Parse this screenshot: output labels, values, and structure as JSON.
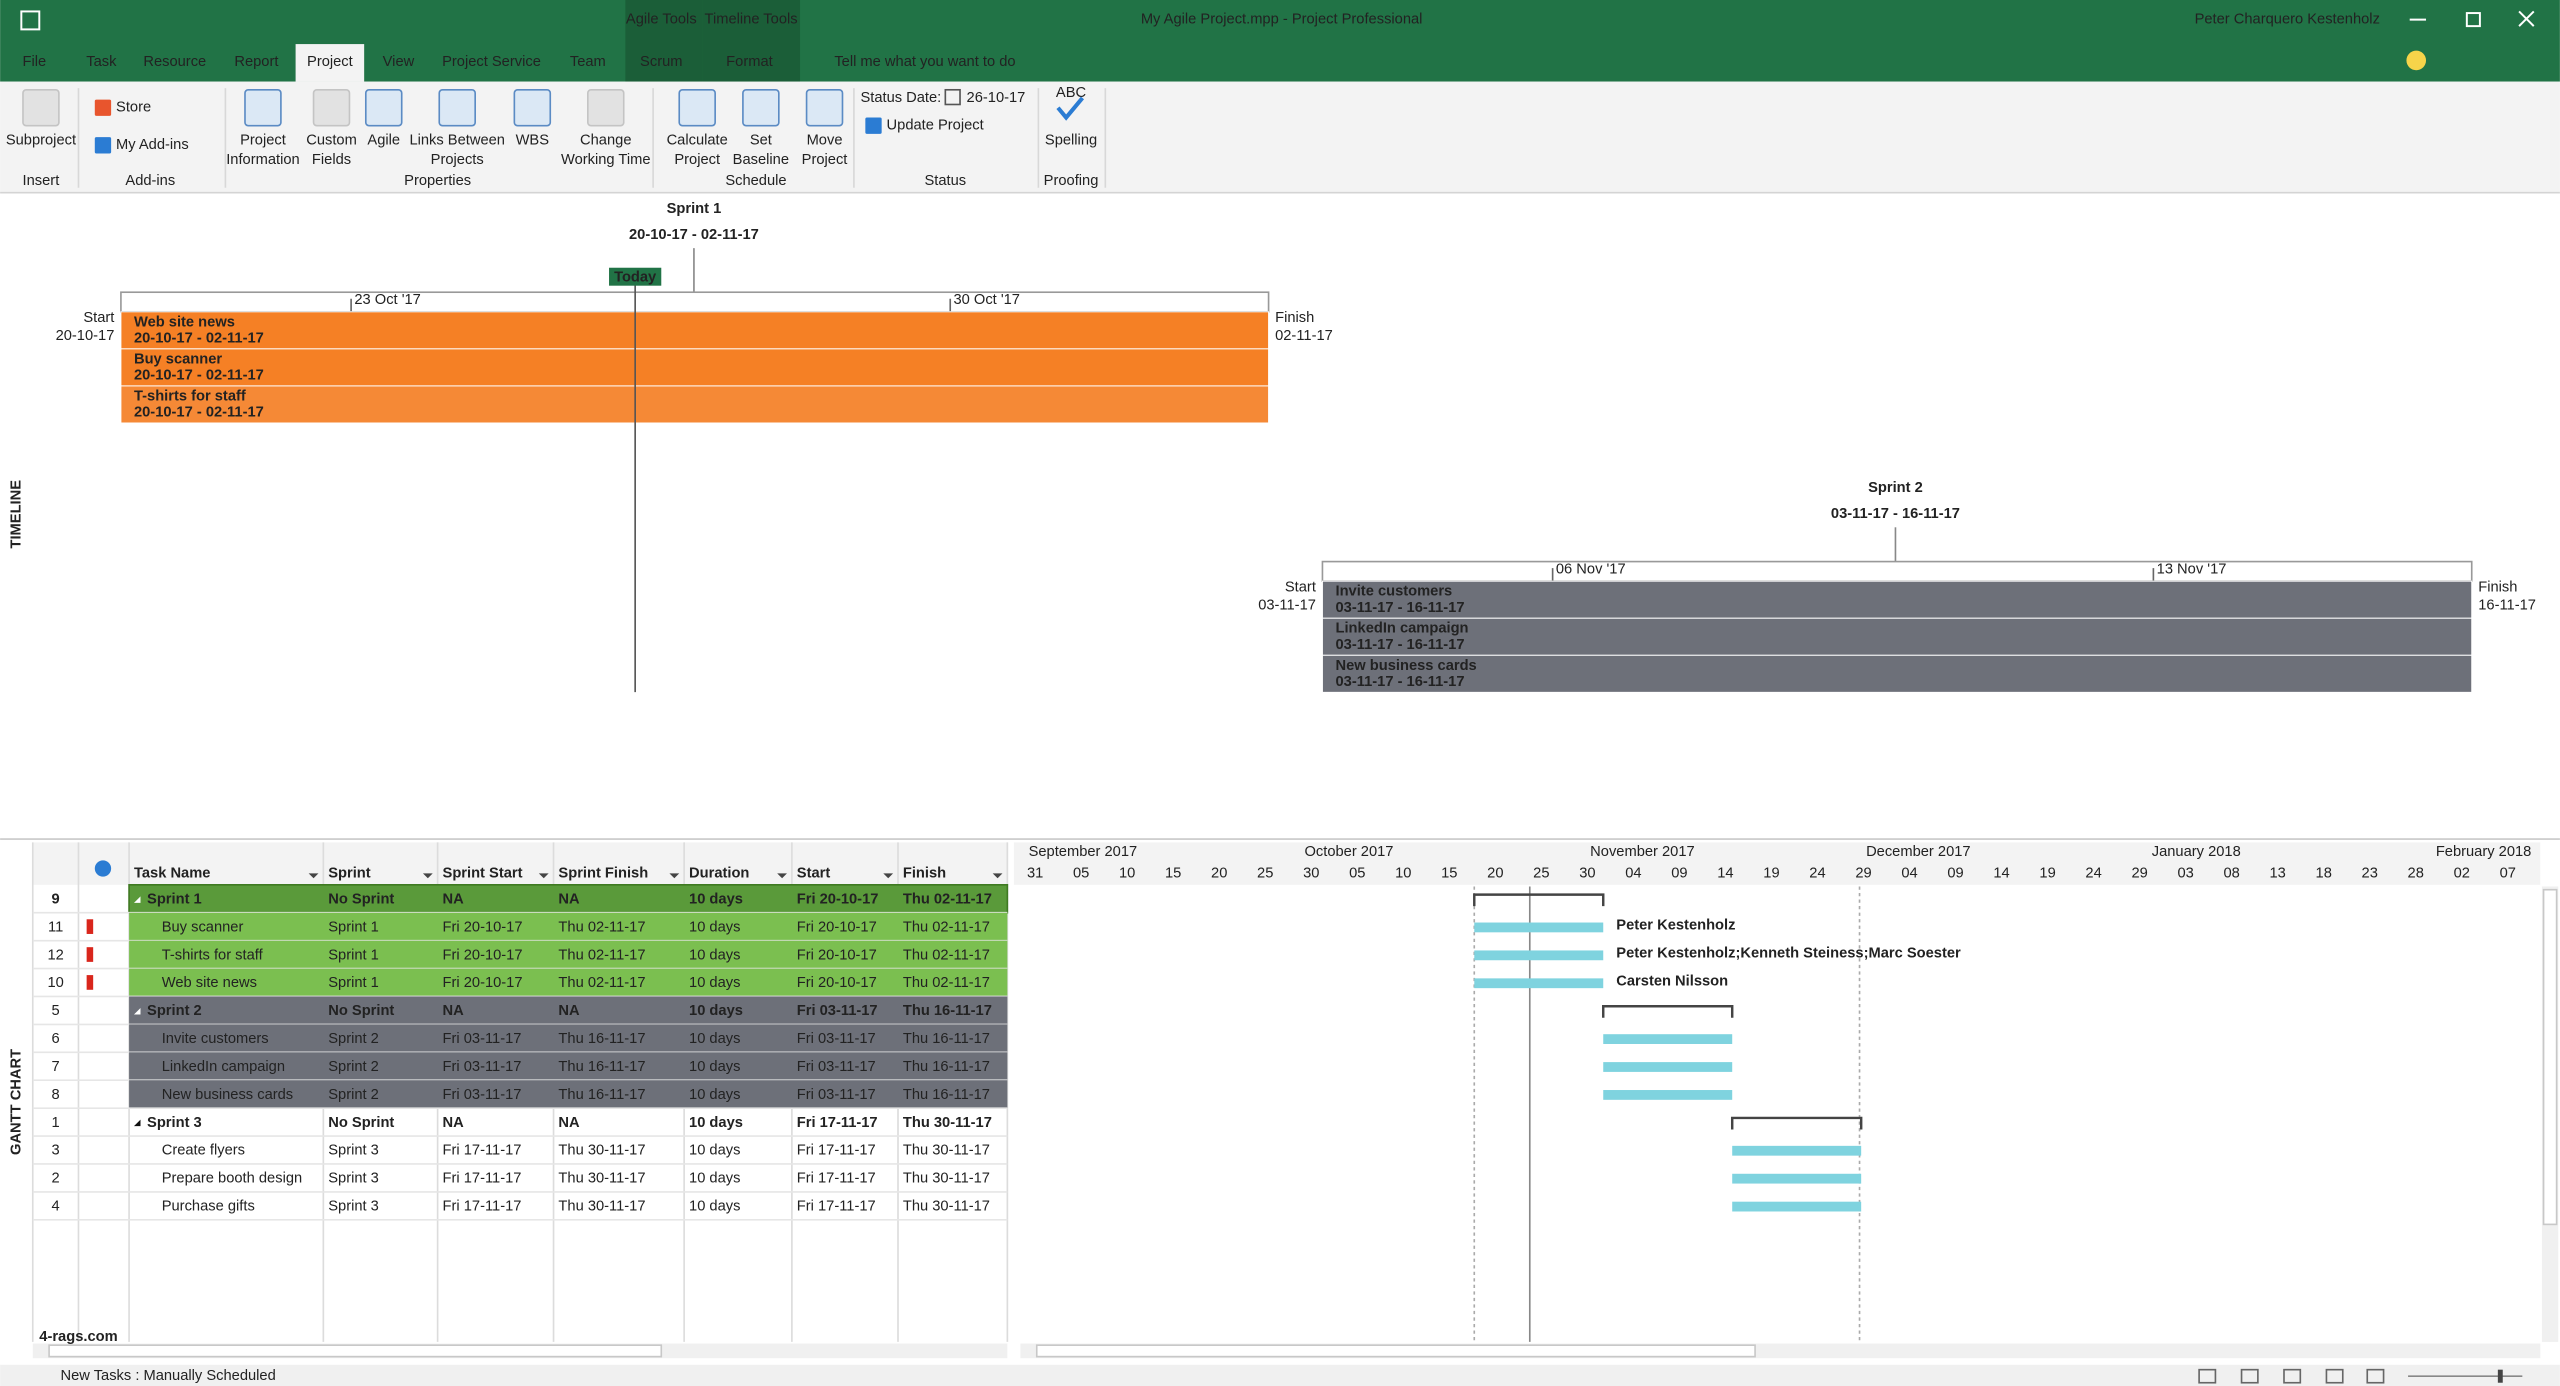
{
  "titlebar": {
    "title": "My Agile Project.mpp  -  Project Professional",
    "user": "Peter Charquero Kestenholz",
    "contextual": [
      "Agile Tools",
      "Timeline Tools"
    ]
  },
  "tabs": [
    "File",
    "Task",
    "Resource",
    "Report",
    "Project",
    "View",
    "Project Service",
    "Team",
    "Scrum",
    "Format"
  ],
  "tell_me": "Tell me what you want to do",
  "ribbon": {
    "buttons": [
      {
        "label": [
          "Subproject"
        ],
        "disabled": true
      },
      {
        "label": [
          "Store"
        ]
      },
      {
        "label": [
          "My Add-ins"
        ]
      },
      {
        "label": [
          "Project",
          "Information"
        ]
      },
      {
        "label": [
          "Custom",
          "Fields"
        ],
        "disabled": true
      },
      {
        "label": [
          "Agile"
        ]
      },
      {
        "label": [
          "Links Between",
          "Projects"
        ]
      },
      {
        "label": [
          "WBS"
        ]
      },
      {
        "label": [
          "Change",
          "Working Time"
        ],
        "disabled": true
      },
      {
        "label": [
          "Calculate",
          "Project"
        ]
      },
      {
        "label": [
          "Set",
          "Baseline"
        ]
      },
      {
        "label": [
          "Move",
          "Project"
        ]
      },
      {
        "label": [
          "Update Project"
        ]
      },
      {
        "label": [
          "ABC",
          "Spelling"
        ]
      }
    ],
    "status_date_label": "Status Date:",
    "status_date": "26-10-17",
    "groups": [
      "Insert",
      "Add-ins",
      "Properties",
      "Schedule",
      "Status",
      "Proofing"
    ]
  },
  "timeline": {
    "side_label": "TIMELINE",
    "today": "Today",
    "sprints": [
      {
        "title": "Sprint 1",
        "dates": "20-10-17 - 02-11-17",
        "start_label": "Start",
        "start": "20-10-17",
        "finish_label": "Finish",
        "finish": "02-11-17",
        "scale": [
          "23 Oct '17",
          "30 Oct '17"
        ],
        "color": "#f58025",
        "tasks": [
          {
            "name": "Web site news",
            "dates": "20-10-17 - 02-11-17"
          },
          {
            "name": "Buy scanner",
            "dates": "20-10-17 - 02-11-17"
          },
          {
            "name": "T-shirts for staff",
            "dates": "20-10-17 - 02-11-17"
          }
        ]
      },
      {
        "title": "Sprint 2",
        "dates": "03-11-17 - 16-11-17",
        "start_label": "Start",
        "start": "03-11-17",
        "finish_label": "Finish",
        "finish": "16-11-17",
        "scale": [
          "06 Nov '17",
          "13 Nov '17"
        ],
        "color": "#6d7079",
        "tasks": [
          {
            "name": "Invite customers",
            "dates": "03-11-17 - 16-11-17"
          },
          {
            "name": "LinkedIn campaign",
            "dates": "03-11-17 - 16-11-17"
          },
          {
            "name": "New business cards",
            "dates": "03-11-17 - 16-11-17"
          }
        ]
      }
    ]
  },
  "gantt": {
    "side_label": "GANTT CHART",
    "columns": [
      "Task Name",
      "Sprint",
      "Sprint Start",
      "Sprint Finish",
      "Duration",
      "Start",
      "Finish"
    ],
    "rows": [
      {
        "id": 9,
        "summary": true,
        "fill": "#5a9a3a",
        "cells": [
          "Sprint 1",
          "No Sprint",
          "NA",
          "NA",
          "10 days",
          "Fri 20-10-17",
          "Thu 02-11-17"
        ]
      },
      {
        "id": 11,
        "fill": "#7bbf50",
        "cells": [
          "Buy scanner",
          "Sprint 1",
          "Fri 20-10-17",
          "Thu 02-11-17",
          "10 days",
          "Fri 20-10-17",
          "Thu 02-11-17"
        ],
        "resource": "Peter Kestenholz"
      },
      {
        "id": 12,
        "fill": "#7bbf50",
        "cells": [
          "T-shirts for staff",
          "Sprint 1",
          "Fri 20-10-17",
          "Thu 02-11-17",
          "10 days",
          "Fri 20-10-17",
          "Thu 02-11-17"
        ],
        "resource": "Peter Kestenholz;Kenneth Steiness;Marc Soester"
      },
      {
        "id": 10,
        "fill": "#7bbf50",
        "cells": [
          "Web site news",
          "Sprint 1",
          "Fri 20-10-17",
          "Thu 02-11-17",
          "10 days",
          "Fri 20-10-17",
          "Thu 02-11-17"
        ],
        "resource": "Carsten Nilsson"
      },
      {
        "id": 5,
        "summary": true,
        "fill": "#6d7079",
        "cells": [
          "Sprint 2",
          "No Sprint",
          "NA",
          "NA",
          "10 days",
          "Fri 03-11-17",
          "Thu 16-11-17"
        ]
      },
      {
        "id": 6,
        "fill": "#6d7079",
        "cells": [
          "Invite customers",
          "Sprint 2",
          "Fri 03-11-17",
          "Thu 16-11-17",
          "10 days",
          "Fri 03-11-17",
          "Thu 16-11-17"
        ]
      },
      {
        "id": 7,
        "fill": "#6d7079",
        "cells": [
          "LinkedIn campaign",
          "Sprint 2",
          "Fri 03-11-17",
          "Thu 16-11-17",
          "10 days",
          "Fri 03-11-17",
          "Thu 16-11-17"
        ]
      },
      {
        "id": 8,
        "fill": "#6d7079",
        "cells": [
          "New business cards",
          "Sprint 2",
          "Fri 03-11-17",
          "Thu 16-11-17",
          "10 days",
          "Fri 03-11-17",
          "Thu 16-11-17"
        ]
      },
      {
        "id": 1,
        "summary": true,
        "cells": [
          "Sprint 3",
          "No Sprint",
          "NA",
          "NA",
          "10 days",
          "Fri 17-11-17",
          "Thu 30-11-17"
        ]
      },
      {
        "id": 3,
        "cells": [
          "Create flyers",
          "Sprint 3",
          "Fri 17-11-17",
          "Thu 30-11-17",
          "10 days",
          "Fri 17-11-17",
          "Thu 30-11-17"
        ]
      },
      {
        "id": 2,
        "cells": [
          "Prepare booth design",
          "Sprint 3",
          "Fri 17-11-17",
          "Thu 30-11-17",
          "10 days",
          "Fri 17-11-17",
          "Thu 30-11-17"
        ]
      },
      {
        "id": 4,
        "cells": [
          "Purchase gifts",
          "Sprint 3",
          "Fri 17-11-17",
          "Thu 30-11-17",
          "10 days",
          "Fri 17-11-17",
          "Thu 30-11-17"
        ]
      }
    ],
    "months": [
      "September 2017",
      "October 2017",
      "November 2017",
      "December 2017",
      "January 2018",
      "February 2018"
    ],
    "days": [
      "31",
      "05",
      "10",
      "15",
      "20",
      "25",
      "30",
      "05",
      "10",
      "15",
      "20",
      "25",
      "30",
      "04",
      "09",
      "14",
      "19",
      "24",
      "29",
      "04",
      "09",
      "14",
      "19",
      "24",
      "29",
      "03",
      "08",
      "13",
      "18",
      "23",
      "28",
      "02",
      "07"
    ],
    "bar_color": "#7fd3df"
  },
  "watermark": "4-rags.com",
  "status_bar": "New Tasks : Manually Scheduled"
}
